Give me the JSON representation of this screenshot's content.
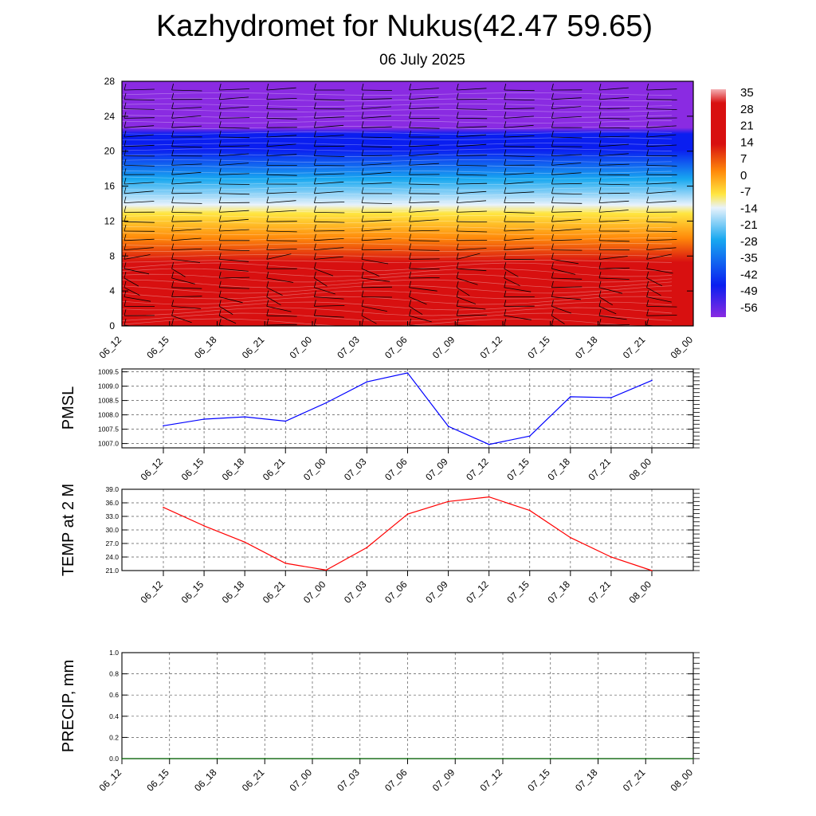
{
  "header": {
    "title": "Kazhydromet for Nukus(42.47 59.65)",
    "subtitle": "06 July 2025"
  },
  "chart_data": [
    {
      "type": "heatmap",
      "x_ticks": [
        "06_12",
        "06_15",
        "06_18",
        "06_21",
        "07_00",
        "07_03",
        "07_06",
        "07_09",
        "07_12",
        "07_15",
        "07_18",
        "07_21",
        "08_00"
      ],
      "y_ticks": [
        0,
        4,
        8,
        12,
        16,
        20,
        24,
        28
      ],
      "ylim": [
        0,
        28
      ],
      "colorbar_labels": [
        "35",
        "28",
        "21",
        "14",
        "7",
        "0",
        "-7",
        "-14",
        "-21",
        "-28",
        "-35",
        "-42",
        "-49",
        "-56"
      ],
      "colors": {
        "top": "#8a2be2",
        "blue": "#0a1ef0",
        "cyan": "#18a8f0",
        "light": "#e8f2fc",
        "yellow": "#ffe640",
        "orange": "#ff8a0a",
        "red": "#d81010",
        "pink": "#f4b0b4"
      },
      "wind_barbs": true
    },
    {
      "type": "line",
      "ylabel": "PMSL",
      "x": [
        "06_12",
        "06_15",
        "06_18",
        "06_21",
        "07_00",
        "07_03",
        "07_06",
        "07_09",
        "07_12",
        "07_15",
        "07_18",
        "07_21",
        "08_00"
      ],
      "values": [
        1007.62,
        1007.85,
        1007.93,
        1007.78,
        1008.42,
        1009.15,
        1009.46,
        1007.6,
        1006.97,
        1007.26,
        1008.63,
        1008.6,
        1009.2
      ],
      "y_ticks": [
        "1007.0",
        "1007.5",
        "1008.0",
        "1008.5",
        "1009.0",
        "1009.5"
      ],
      "ylim": [
        1006.85,
        1009.6
      ],
      "color": "#0000ff",
      "grid": true
    },
    {
      "type": "line",
      "ylabel": "TEMP at 2 M",
      "x": [
        "06_12",
        "06_15",
        "06_18",
        "06_21",
        "07_00",
        "07_03",
        "07_06",
        "07_09",
        "07_12",
        "07_15",
        "07_18",
        "07_21",
        "08_00"
      ],
      "values": [
        35.0,
        30.9,
        27.3,
        22.6,
        21.1,
        26.1,
        33.5,
        36.3,
        37.3,
        34.3,
        28.3,
        24.0,
        21.0
      ],
      "y_ticks": [
        "21.0",
        "24.0",
        "27.0",
        "30.0",
        "33.0",
        "36.0",
        "39.0"
      ],
      "ylim": [
        21.0,
        39.0
      ],
      "color": "#ff0000",
      "grid": true
    },
    {
      "type": "line",
      "ylabel": "PRECIP, mm",
      "x": [
        "06_12",
        "06_15",
        "06_18",
        "06_21",
        "07_00",
        "07_03",
        "07_06",
        "07_09",
        "07_12",
        "07_15",
        "07_18",
        "07_21",
        "08_00"
      ],
      "values": [
        0,
        0,
        0,
        0,
        0,
        0,
        0,
        0,
        0,
        0,
        0,
        0,
        0
      ],
      "y_ticks": [
        "0.0",
        "0.2",
        "0.4",
        "0.6",
        "0.8",
        "1.0"
      ],
      "ylim": [
        0.0,
        1.0
      ],
      "color": "#006400",
      "grid": true
    }
  ]
}
